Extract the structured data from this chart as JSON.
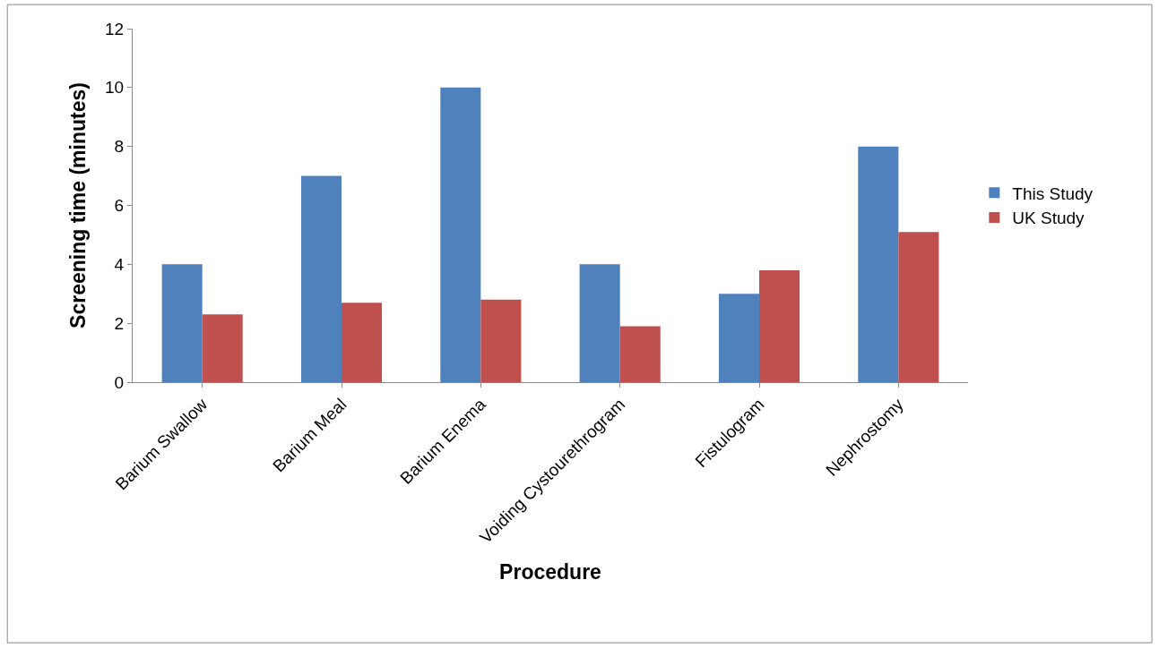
{
  "chart_data": {
    "type": "bar",
    "xlabel": "Procedure",
    "ylabel": "Screening time (minutes)",
    "categories": [
      "Barium Swallow",
      "Barium Meal",
      "Barium Enema",
      "Voiding Cystourethrogram",
      "Fistulogram",
      "Nephrostomy"
    ],
    "series": [
      {
        "name": "This Study",
        "color": "#4f81bd",
        "values": [
          4,
          7,
          10,
          4,
          3,
          8
        ]
      },
      {
        "name": "UK Study",
        "color": "#c0504d",
        "values": [
          2.3,
          2.7,
          2.8,
          1.9,
          3.8,
          5.1
        ]
      }
    ],
    "ylim": [
      0,
      12
    ],
    "yticks": [
      0,
      2,
      4,
      6,
      8,
      10,
      12
    ],
    "legend": "right"
  }
}
